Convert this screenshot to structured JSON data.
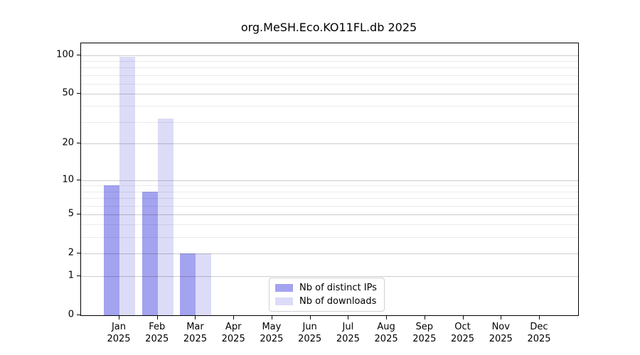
{
  "title": "org.MeSH.Eco.KO11FL.db 2025",
  "year_label": "2025",
  "colors": {
    "distinct_ips": "#a3a3f0",
    "downloads": "#dcdcf8",
    "grid_major": "rgba(0,0,0,0.20)",
    "grid_minor": "rgba(0,0,0,0.08)",
    "axis": "#000000",
    "legend_border": "#d0d0d0"
  },
  "legend": {
    "items": [
      {
        "label": "Nb of distinct IPs",
        "color": "#a3a3f0"
      },
      {
        "label": "Nb of downloads",
        "color": "#dcdcf8"
      }
    ]
  },
  "chart_data": {
    "type": "bar",
    "title": "org.MeSH.Eco.KO11FL.db 2025",
    "categories": [
      "Jan",
      "Feb",
      "Mar",
      "Apr",
      "May",
      "Jun",
      "Jul",
      "Aug",
      "Sep",
      "Oct",
      "Nov",
      "Dec"
    ],
    "category_year": "2025",
    "series": [
      {
        "name": "Nb of distinct IPs",
        "color": "#a3a3f0",
        "values": [
          9,
          8,
          2,
          0,
          0,
          0,
          0,
          0,
          0,
          0,
          0,
          0
        ]
      },
      {
        "name": "Nb of downloads",
        "color": "#dcdcf8",
        "values": [
          97,
          32,
          2,
          0,
          0,
          0,
          0,
          0,
          0,
          0,
          0,
          0
        ]
      }
    ],
    "xlabel": "",
    "ylabel": "",
    "yscale": "log1p",
    "yticks_major": [
      0,
      1,
      2,
      5,
      10,
      20,
      50,
      100
    ],
    "yticks_minor": [
      3,
      4,
      6,
      7,
      8,
      9,
      30,
      40,
      60,
      70,
      80,
      90
    ],
    "ylim": [
      0,
      124
    ],
    "grid": "horizontal",
    "legend_position": "inside-bottom-center"
  }
}
